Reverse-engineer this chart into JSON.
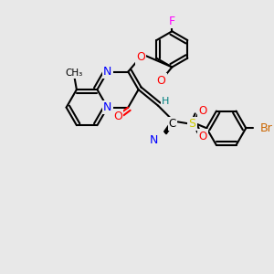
{
  "bg_color": "#e8e8e8",
  "bond_color": "#000000",
  "atom_colors": {
    "N": "#0000ff",
    "O": "#ff0000",
    "F": "#ff00ff",
    "Br": "#cc6600",
    "S": "#cccc00",
    "C": "#000000",
    "H": "#008080"
  },
  "line_width": 1.5,
  "font_size": 9
}
